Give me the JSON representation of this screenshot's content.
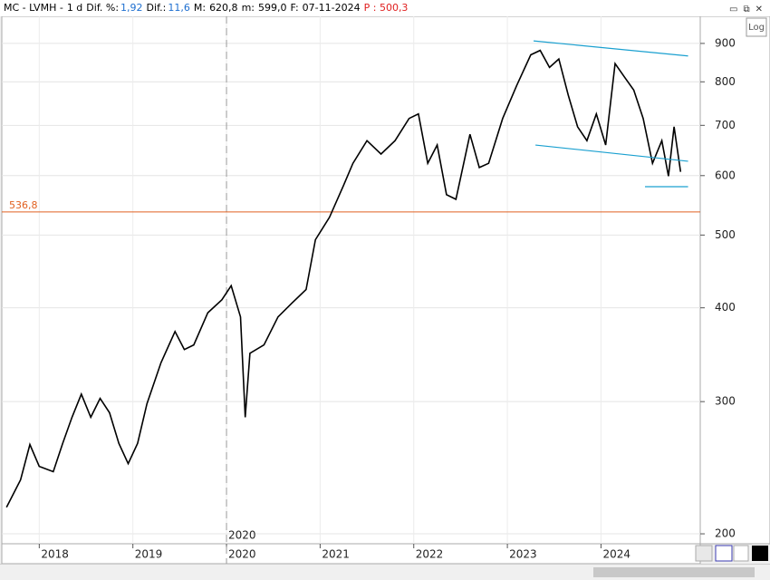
{
  "header": [
    "MC - LVMH -",
    "1 d",
    "Dif. %:",
    "1,92",
    "Dif.:",
    "11,6",
    "M:",
    "620,8",
    "m:",
    "599,0",
    "F:",
    "07-11-2024",
    "P : 500,3"
  ],
  "log_button": "Log",
  "chart_data": {
    "type": "line",
    "log_scale": true,
    "x": [
      2017.65,
      2017.8,
      2017.9,
      2018.0,
      2018.15,
      2018.25,
      2018.35,
      2018.45,
      2018.55,
      2018.65,
      2018.75,
      2018.85,
      2018.95,
      2019.05,
      2019.15,
      2019.3,
      2019.45,
      2019.55,
      2019.65,
      2019.8,
      2019.95,
      2020.05,
      2020.15,
      2020.2,
      2020.25,
      2020.4,
      2020.55,
      2020.7,
      2020.85,
      2020.95,
      2021.1,
      2021.25,
      2021.35,
      2021.5,
      2021.65,
      2021.8,
      2021.95,
      2022.05,
      2022.15,
      2022.25,
      2022.35,
      2022.45,
      2022.6,
      2022.7,
      2022.8,
      2022.95,
      2023.1,
      2023.25,
      2023.35,
      2023.45,
      2023.55,
      2023.65,
      2023.75,
      2023.85,
      2023.95,
      2024.05,
      2024.15,
      2024.25,
      2024.35,
      2024.45,
      2024.55,
      2024.65,
      2024.72,
      2024.78,
      2024.85
    ],
    "series": [
      {
        "name": "MC - LVMH",
        "color": "#000000",
        "values": [
          217,
          236,
          263,
          246,
          242,
          264,
          286,
          307,
          286,
          303,
          290,
          264,
          248,
          264,
          298,
          338,
          372,
          352,
          357,
          394,
          410,
          428,
          389,
          286,
          348,
          357,
          389,
          406,
          423,
          493,
          528,
          582,
          623,
          668,
          641,
          668,
          715,
          725,
          623,
          659,
          566,
          558,
          681,
          615,
          623,
          715,
          791,
          869,
          881,
          836,
          858,
          768,
          697,
          668,
          725,
          659,
          846,
          812,
          780,
          715,
          623,
          668,
          599,
          697,
          607
        ]
      }
    ],
    "xlim": [
      2017.6,
      2025.06
    ],
    "xticks": [
      2018,
      2019,
      2020,
      2021,
      2022,
      2023,
      2024
    ],
    "ylim": [
      194,
      978
    ],
    "yticks": [
      200,
      300,
      400,
      500,
      600,
      700,
      800,
      900
    ],
    "grid": true,
    "hline": {
      "value": 536.8,
      "label": "536,8",
      "color": "#e06020"
    },
    "divider_x": 2020,
    "trendlines": [
      {
        "x1": 2023.28,
        "y1": 907,
        "x2": 2024.93,
        "y2": 866
      },
      {
        "x1": 2023.3,
        "y1": 659,
        "x2": 2024.93,
        "y2": 627
      },
      {
        "x1": 2024.47,
        "y1": 580,
        "x2": 2024.93,
        "y2": 580
      }
    ],
    "trend_color": "#1aa0d0"
  }
}
